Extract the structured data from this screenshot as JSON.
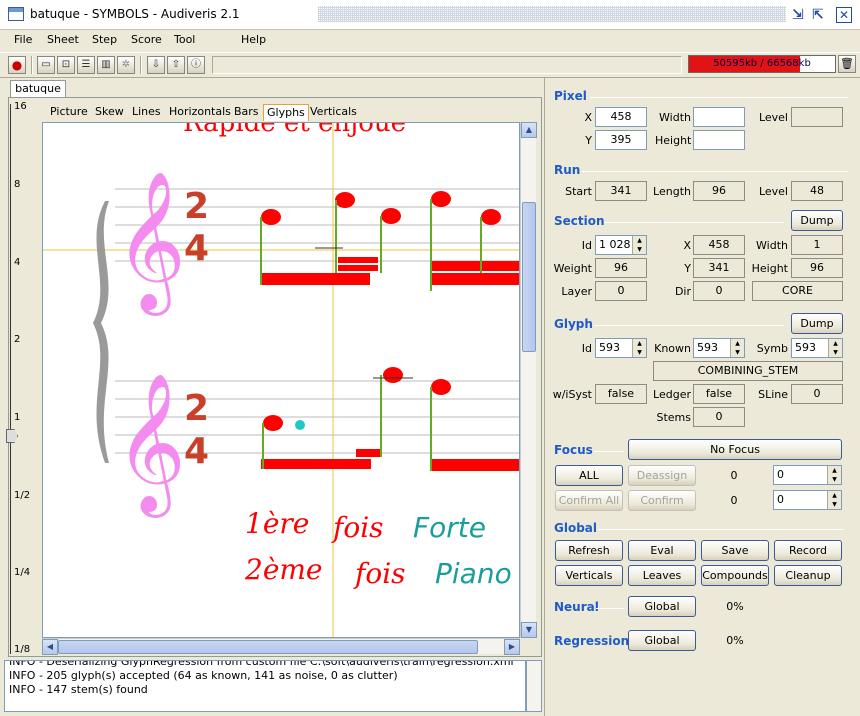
{
  "window": {
    "title": "batuque - SYMBOLS - Audiveris 2.1"
  },
  "menu": [
    "File",
    "Sheet",
    "Step",
    "Score",
    "Tool",
    "Help"
  ],
  "memory": {
    "text": "50595kb / 66568kb",
    "used_fraction": 0.76
  },
  "sheet_tab": "batuque",
  "view_tabs": [
    "Picture",
    "Skew",
    "Lines",
    "Horizontals",
    "Bars",
    "Glyphs",
    "Verticals"
  ],
  "selected_view_tab": "Glyphs",
  "ruler_labels": [
    "16",
    "8",
    "4",
    "2",
    "1",
    "1/2",
    "1/4",
    "1/8"
  ],
  "score_text": {
    "top": "Rapide et enjoué",
    "line1_a": "1ère",
    "line1_b": "fois",
    "line1_c": "Forte",
    "line2_a": "2ème",
    "line2_b": "fois",
    "line2_c": "Piano",
    "time_num": "2",
    "time_den": "4"
  },
  "log": [
    "INFO - Deserializing GlyphRegression from custom file C:\\soft\\audiveris\\train\\regression.xml",
    "INFO - 205 glyph(s) accepted (64 as known, 141 as noise, 0 as clutter)",
    "INFO - 147 stem(s) found"
  ],
  "pixel": {
    "title": "Pixel",
    "x_label": "X",
    "x": "458",
    "y_label": "Y",
    "y": "395",
    "width_label": "Width",
    "width": "",
    "height_label": "Height",
    "height": "",
    "level_label": "Level",
    "level": ""
  },
  "run": {
    "title": "Run",
    "start_label": "Start",
    "start": "341",
    "length_label": "Length",
    "length": "96",
    "level_label": "Level",
    "level": "48"
  },
  "section": {
    "title": "Section",
    "dump": "Dump",
    "id_label": "Id",
    "id": "1 028",
    "x_label": "X",
    "x": "458",
    "width_label": "Width",
    "width": "1",
    "weight_label": "Weight",
    "weight": "96",
    "y_label": "Y",
    "y": "341",
    "height_label": "Height",
    "height": "96",
    "layer_label": "Layer",
    "layer": "0",
    "dir_label": "Dir",
    "dir": "0",
    "core": "CORE"
  },
  "glyph": {
    "title": "Glyph",
    "dump": "Dump",
    "id_label": "Id",
    "id": "593",
    "known_label": "Known",
    "known": "593",
    "symb_label": "Symb",
    "symb": "593",
    "shape": "COMBINING_STEM",
    "wisyst_label": "w/iSyst",
    "wisyst": "false",
    "ledger_label": "Ledger",
    "ledger": "false",
    "sline_label": "SLine",
    "sline": "0",
    "stems_label": "Stems",
    "stems": "0"
  },
  "focus": {
    "title": "Focus",
    "no_focus": "No Focus",
    "all": "ALL",
    "deassign": "Deassign",
    "deassign_count": "0",
    "deassign_spin": "0",
    "confirm_all": "Confirm All",
    "confirm": "Confirm",
    "confirm_count": "0",
    "confirm_spin": "0"
  },
  "global": {
    "title": "Global",
    "buttons": [
      "Refresh",
      "Eval",
      "Save",
      "Record",
      "Verticals",
      "Leaves",
      "Compounds",
      "Cleanup"
    ]
  },
  "neural": {
    "title": "Neural",
    "button": "Global",
    "percent": "0%"
  },
  "regression": {
    "title": "Regression",
    "button": "Global",
    "percent": "0%"
  },
  "colors": {
    "section_title": "#1f5bc8",
    "membar_fill": "#e01414",
    "glyph_red": "#ff0000",
    "clef_pink": "#f48cf0",
    "brace_gray": "#9a9a9a",
    "teal": "#1a9e9a",
    "crosshair": "#e8c440"
  }
}
